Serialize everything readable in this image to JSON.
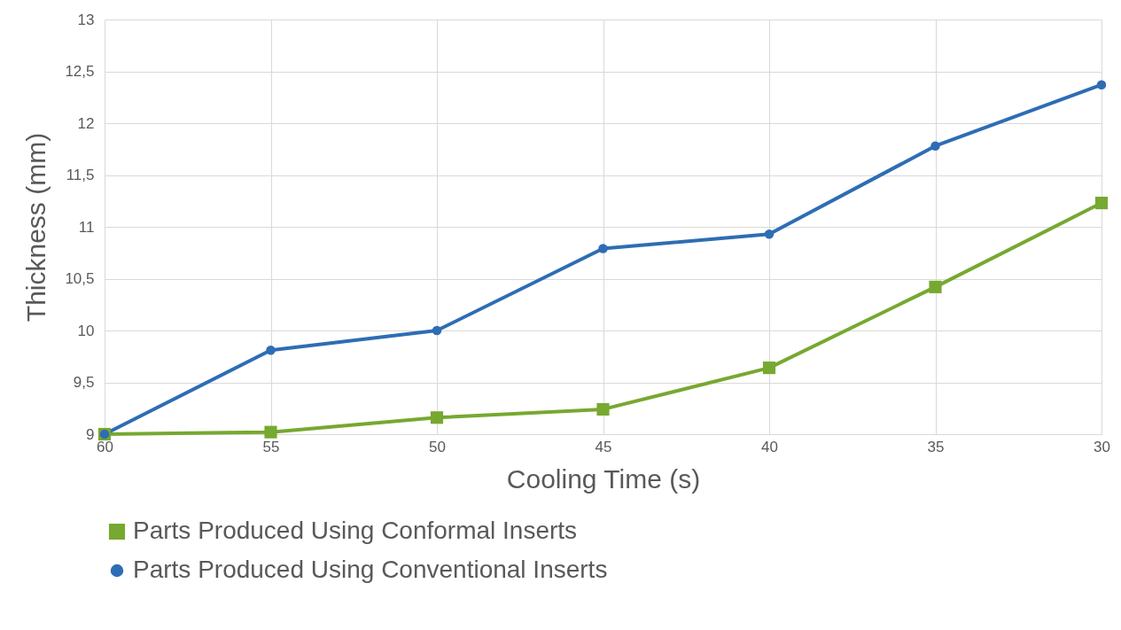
{
  "chart_data": {
    "type": "line",
    "xlabel": "Cooling Time (s)",
    "ylabel": "Thickness (mm)",
    "categories": [
      "60",
      "55",
      "50",
      "45",
      "40",
      "35",
      "30"
    ],
    "series": [
      {
        "name": "Parts Produced Using Conformal Inserts",
        "color": "#77a830",
        "marker": "square",
        "values": [
          9.0,
          9.02,
          9.16,
          9.24,
          9.64,
          10.42,
          11.23
        ]
      },
      {
        "name": "Parts Produced Using Conventional Inserts",
        "color": "#2e6db4",
        "marker": "circle",
        "values": [
          9.0,
          9.81,
          10.0,
          10.79,
          10.93,
          11.78,
          12.37
        ]
      }
    ],
    "ylim": [
      9,
      13
    ],
    "yticks": [
      9,
      {
        "value": 9.5,
        "label": "9,5"
      },
      10,
      {
        "value": 10.5,
        "label": "10,5"
      },
      11,
      {
        "value": 11.5,
        "label": "11,5"
      },
      12,
      {
        "value": 12.5,
        "label": "12,5"
      },
      13
    ],
    "grid": true,
    "legend": "bottom"
  }
}
